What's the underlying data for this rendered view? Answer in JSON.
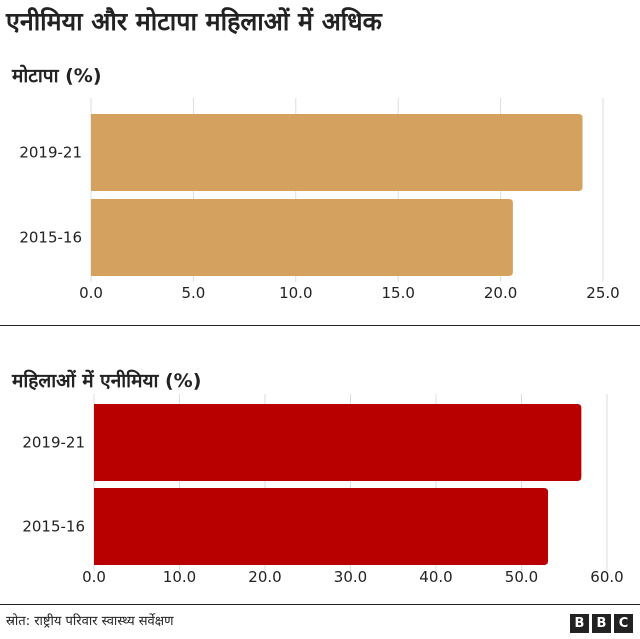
{
  "title": "एनीमिया और मोटापा महिलाओं में अधिक",
  "source": "स्रोत: राष्ट्रीय परिवार स्वास्थ्य सर्वेक्षण",
  "logo": [
    "B",
    "B",
    "C"
  ],
  "chart_data": [
    {
      "type": "bar",
      "orientation": "horizontal",
      "title": "मोटापा (%)",
      "categories": [
        "2019-21",
        "2015-16"
      ],
      "values": [
        24.0,
        20.6
      ],
      "xlim": [
        0,
        25
      ],
      "ticks": [
        "0.0",
        "5.0",
        "10.0",
        "15.0",
        "20.0",
        "25.0"
      ],
      "tick_values": [
        0,
        5,
        10,
        15,
        20,
        25
      ],
      "color": "#d4a15e",
      "grid": true
    },
    {
      "type": "bar",
      "orientation": "horizontal",
      "title": "महिलाओं में एनीमिया (%)",
      "categories": [
        "2019-21",
        "2015-16"
      ],
      "values": [
        57.0,
        53.1
      ],
      "xlim": [
        0,
        60
      ],
      "ticks": [
        "0.0",
        "10.0",
        "20.0",
        "30.0",
        "40.0",
        "50.0",
        "60.0"
      ],
      "tick_values": [
        0,
        10,
        20,
        30,
        40,
        50,
        60
      ],
      "color": "#b80000",
      "grid": true
    }
  ]
}
